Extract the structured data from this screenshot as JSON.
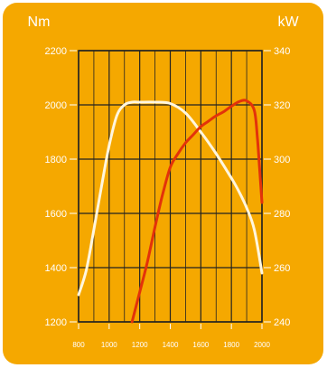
{
  "colors": {
    "background": "#F5A800",
    "grid": "#222222",
    "axis_text": "#FFFFFF",
    "torque_curve": "#FFF6DE",
    "power_curve": "#E3320A"
  },
  "chart_data": {
    "type": "line",
    "left_axis": {
      "unit": "Nm",
      "ticks": [
        1200,
        1400,
        1600,
        1800,
        2000,
        2200
      ],
      "range": [
        1200,
        2200
      ]
    },
    "right_axis": {
      "unit": "kW",
      "ticks": [
        240,
        260,
        280,
        300,
        320,
        340
      ],
      "range": [
        240,
        340
      ]
    },
    "x_axis": {
      "ticks": [
        800,
        1000,
        1200,
        1400,
        1600,
        1800,
        2000
      ],
      "range": [
        800,
        2000
      ],
      "minor_step": 100
    },
    "grid": true,
    "series": [
      {
        "axis": "left",
        "color": "#FFF6DE",
        "points": [
          [
            800,
            1300
          ],
          [
            850,
            1390
          ],
          [
            900,
            1540
          ],
          [
            950,
            1700
          ],
          [
            1000,
            1850
          ],
          [
            1050,
            1960
          ],
          [
            1100,
            2000
          ],
          [
            1150,
            2010
          ],
          [
            1200,
            2010
          ],
          [
            1300,
            2010
          ],
          [
            1400,
            2005
          ],
          [
            1500,
            1970
          ],
          [
            1600,
            1900
          ],
          [
            1700,
            1820
          ],
          [
            1800,
            1730
          ],
          [
            1850,
            1680
          ],
          [
            1900,
            1620
          ],
          [
            1950,
            1540
          ],
          [
            2000,
            1380
          ]
        ]
      },
      {
        "axis": "right",
        "color": "#E3320A",
        "points": [
          [
            1150,
            240
          ],
          [
            1200,
            251
          ],
          [
            1250,
            262
          ],
          [
            1300,
            275
          ],
          [
            1350,
            287
          ],
          [
            1400,
            297
          ],
          [
            1450,
            302
          ],
          [
            1500,
            306
          ],
          [
            1550,
            309
          ],
          [
            1600,
            312
          ],
          [
            1650,
            314
          ],
          [
            1700,
            316
          ],
          [
            1750,
            317.5
          ],
          [
            1800,
            319.5
          ],
          [
            1850,
            321.2
          ],
          [
            1900,
            321.5
          ],
          [
            1950,
            318
          ],
          [
            1970,
            308
          ],
          [
            1985,
            296
          ],
          [
            2000,
            284
          ]
        ]
      }
    ]
  }
}
